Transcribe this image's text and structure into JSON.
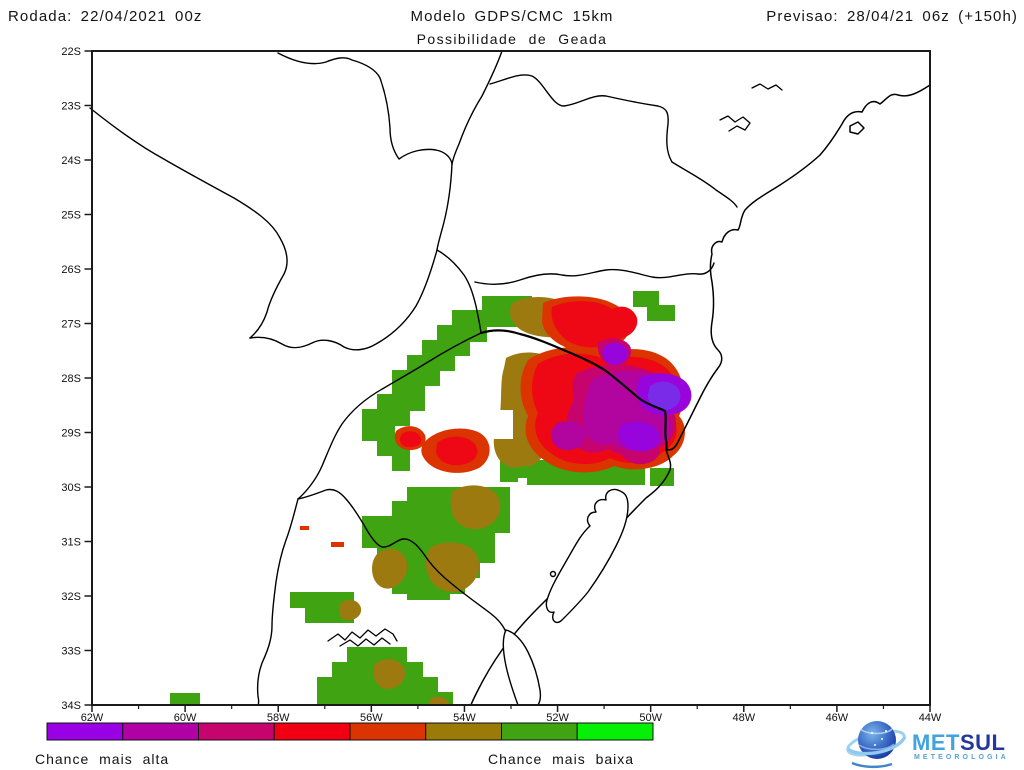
{
  "header": {
    "left": "Rodada: 22/04/2021 00z",
    "center": "Modelo GDPS/CMC 15km",
    "right": "Previsao: 28/04/21 06z (+150h)",
    "subtitle": "Possibilidade de Geada"
  },
  "axes": {
    "lat_labels": [
      "22S",
      "23S",
      "24S",
      "25S",
      "26S",
      "27S",
      "28S",
      "29S",
      "30S",
      "31S",
      "32S",
      "33S",
      "34S"
    ],
    "lon_labels": [
      "62W",
      "60W",
      "58W",
      "56W",
      "54W",
      "52W",
      "50W",
      "48W",
      "46W",
      "44W"
    ]
  },
  "legend": {
    "label_left": "Chance mais alta",
    "label_right": "Chance mais baixa",
    "colors": [
      "#9A00E6",
      "#B000A6",
      "#C7046E",
      "#F00012",
      "#DC3400",
      "#9C7A08",
      "#3FA312",
      "#06F006"
    ]
  },
  "map_colors": {
    "green": "#3FA312",
    "olive": "#9C7A10",
    "orangered": "#DC3400",
    "red": "#EE0815",
    "crimson": "#C7046E",
    "magenta": "#B2049E",
    "purple": "#9705DC",
    "violet": "#7A2BE8",
    "line": "#000000"
  },
  "logo": {
    "met": "MET",
    "sul": "SUL",
    "sub": "METEOROLOGIA"
  }
}
